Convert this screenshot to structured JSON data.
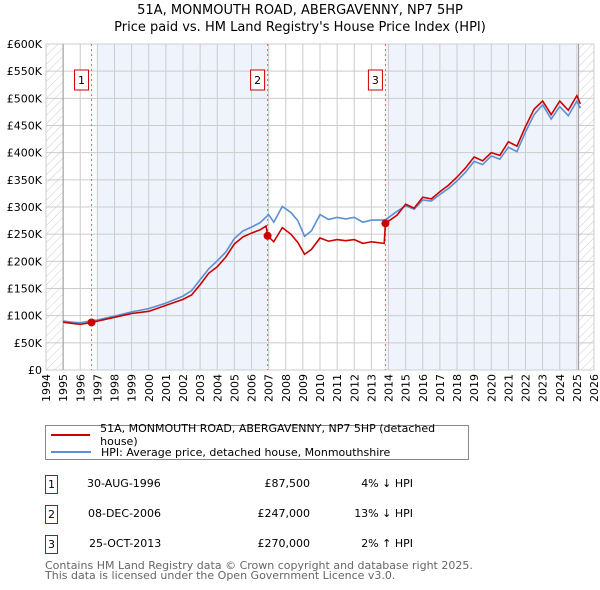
{
  "header": {
    "title": "51A, MONMOUTH ROAD, ABERGAVENNY, NP7 5HP",
    "subtitle": "Price paid vs. HM Land Registry's House Price Index (HPI)"
  },
  "chart_data": {
    "type": "line",
    "title": "51A, MONMOUTH ROAD, ABERGAVENNY, NP7 5HP",
    "subtitle": "Price paid vs. HM Land Registry's House Price Index (HPI)",
    "xlim": [
      1994,
      2026
    ],
    "ylim": [
      0,
      600000
    ],
    "x_ticks": [
      "1994",
      "1995",
      "1996",
      "1997",
      "1998",
      "1999",
      "2000",
      "2001",
      "2002",
      "2003",
      "2004",
      "2005",
      "2006",
      "2007",
      "2008",
      "2009",
      "2010",
      "2011",
      "2012",
      "2013",
      "2014",
      "2015",
      "2016",
      "2017",
      "2018",
      "2019",
      "2020",
      "2021",
      "2022",
      "2023",
      "2024",
      "2025",
      "2026"
    ],
    "y_ticks": [
      {
        "v": 0,
        "label": "£0"
      },
      {
        "v": 50000,
        "label": "£50K"
      },
      {
        "v": 100000,
        "label": "£100K"
      },
      {
        "v": 150000,
        "label": "£150K"
      },
      {
        "v": 200000,
        "label": "£200K"
      },
      {
        "v": 250000,
        "label": "£250K"
      },
      {
        "v": 300000,
        "label": "£300K"
      },
      {
        "v": 350000,
        "label": "£350K"
      },
      {
        "v": 400000,
        "label": "£400K"
      },
      {
        "v": 450000,
        "label": "£450K"
      },
      {
        "v": 500000,
        "label": "£500K"
      },
      {
        "v": 550000,
        "label": "£550K"
      },
      {
        "v": 600000,
        "label": "£600K"
      }
    ],
    "grid": true,
    "legend_position": "below",
    "colors": {
      "price": "#cc0000",
      "hpi": "#5b8fd4",
      "band": "#eef3fc"
    },
    "series": [
      {
        "name": "51A, MONMOUTH ROAD, ABERGAVENNY, NP7 5HP (detached house)",
        "points": [
          [
            1995,
            88000
          ],
          [
            1995.5,
            86000
          ],
          [
            1996,
            84000
          ],
          [
            1996.66,
            87500
          ],
          [
            1997,
            90000
          ],
          [
            1998,
            97000
          ],
          [
            1999,
            104000
          ],
          [
            2000,
            108000
          ],
          [
            2001,
            119000
          ],
          [
            2002,
            130000
          ],
          [
            2002.5,
            138000
          ],
          [
            2003,
            157000
          ],
          [
            2003.5,
            178000
          ],
          [
            2004,
            190000
          ],
          [
            2004.5,
            208000
          ],
          [
            2005,
            232000
          ],
          [
            2005.5,
            245000
          ],
          [
            2006,
            252000
          ],
          [
            2006.5,
            258000
          ],
          [
            2006.85,
            265000
          ],
          [
            2006.94,
            247000
          ],
          [
            2007.3,
            236000
          ],
          [
            2007.8,
            262000
          ],
          [
            2008.3,
            250000
          ],
          [
            2008.7,
            235000
          ],
          [
            2009.1,
            213000
          ],
          [
            2009.5,
            222000
          ],
          [
            2010,
            243000
          ],
          [
            2010.5,
            237000
          ],
          [
            2011,
            240000
          ],
          [
            2011.5,
            238000
          ],
          [
            2012,
            240000
          ],
          [
            2012.5,
            233000
          ],
          [
            2013,
            236000
          ],
          [
            2013.75,
            233000
          ],
          [
            2013.82,
            270000
          ],
          [
            2014.5,
            285000
          ],
          [
            2015,
            305000
          ],
          [
            2015.5,
            298000
          ],
          [
            2016,
            318000
          ],
          [
            2016.5,
            315000
          ],
          [
            2017,
            328000
          ],
          [
            2017.5,
            340000
          ],
          [
            2018,
            355000
          ],
          [
            2018.5,
            372000
          ],
          [
            2019,
            392000
          ],
          [
            2019.5,
            385000
          ],
          [
            2020,
            400000
          ],
          [
            2020.5,
            395000
          ],
          [
            2021,
            420000
          ],
          [
            2021.5,
            412000
          ],
          [
            2022,
            448000
          ],
          [
            2022.5,
            480000
          ],
          [
            2023,
            495000
          ],
          [
            2023.5,
            470000
          ],
          [
            2024,
            495000
          ],
          [
            2024.5,
            478000
          ],
          [
            2025,
            505000
          ],
          [
            2025.2,
            490000
          ]
        ]
      },
      {
        "name": "HPI: Average price, detached house, Monmouthshire",
        "points": [
          [
            1995,
            90000
          ],
          [
            1995.5,
            88000
          ],
          [
            1996,
            87000
          ],
          [
            1996.7,
            91000
          ],
          [
            1997,
            92000
          ],
          [
            1998,
            99000
          ],
          [
            1999,
            107000
          ],
          [
            2000,
            113000
          ],
          [
            2001,
            123000
          ],
          [
            2002,
            136000
          ],
          [
            2002.5,
            146000
          ],
          [
            2003,
            166000
          ],
          [
            2003.5,
            186000
          ],
          [
            2004,
            201000
          ],
          [
            2004.5,
            217000
          ],
          [
            2005,
            242000
          ],
          [
            2005.5,
            256000
          ],
          [
            2006,
            263000
          ],
          [
            2006.5,
            271000
          ],
          [
            2007,
            286000
          ],
          [
            2007.3,
            272000
          ],
          [
            2007.8,
            301000
          ],
          [
            2008.3,
            290000
          ],
          [
            2008.7,
            275000
          ],
          [
            2009.1,
            246000
          ],
          [
            2009.5,
            256000
          ],
          [
            2010,
            286000
          ],
          [
            2010.5,
            277000
          ],
          [
            2011,
            281000
          ],
          [
            2011.5,
            278000
          ],
          [
            2012,
            281000
          ],
          [
            2012.5,
            272000
          ],
          [
            2013,
            276000
          ],
          [
            2013.8,
            276000
          ],
          [
            2014.5,
            292000
          ],
          [
            2015,
            302000
          ],
          [
            2015.5,
            296000
          ],
          [
            2016,
            313000
          ],
          [
            2016.5,
            311000
          ],
          [
            2017,
            323000
          ],
          [
            2017.5,
            334000
          ],
          [
            2018,
            348000
          ],
          [
            2018.5,
            364000
          ],
          [
            2019,
            384000
          ],
          [
            2019.5,
            378000
          ],
          [
            2020,
            394000
          ],
          [
            2020.5,
            388000
          ],
          [
            2021,
            410000
          ],
          [
            2021.5,
            402000
          ],
          [
            2022,
            438000
          ],
          [
            2022.5,
            470000
          ],
          [
            2023,
            488000
          ],
          [
            2023.5,
            462000
          ],
          [
            2024,
            485000
          ],
          [
            2024.5,
            468000
          ],
          [
            2025,
            495000
          ],
          [
            2025.2,
            482000
          ]
        ]
      }
    ],
    "sales": [
      {
        "n": "1",
        "x": 1996.66,
        "y": 87500
      },
      {
        "n": "2",
        "x": 2006.94,
        "y": 247000
      },
      {
        "n": "3",
        "x": 2013.82,
        "y": 270000
      }
    ],
    "bands": [
      [
        1997,
        2006.94
      ],
      [
        2013.82,
        2025.1
      ]
    ],
    "hatch": [
      [
        1994,
        1995
      ],
      [
        2025.1,
        2026
      ]
    ]
  },
  "legend": {
    "price_label": "51A, MONMOUTH ROAD, ABERGAVENNY, NP7 5HP (detached house)",
    "hpi_label": "HPI: Average price, detached house, Monmouthshire"
  },
  "transactions": [
    {
      "n": "1",
      "date": "30-AUG-1996",
      "price": "£87,500",
      "hpi": "4% ↓ HPI"
    },
    {
      "n": "2",
      "date": "08-DEC-2006",
      "price": "£247,000",
      "hpi": "13% ↓ HPI"
    },
    {
      "n": "3",
      "date": "25-OCT-2013",
      "price": "£270,000",
      "hpi": "2% ↑ HPI"
    }
  ],
  "footer": {
    "line1": "Contains HM Land Registry data © Crown copyright and database right 2025.",
    "line2": "This data is licensed under the Open Government Licence v3.0."
  }
}
